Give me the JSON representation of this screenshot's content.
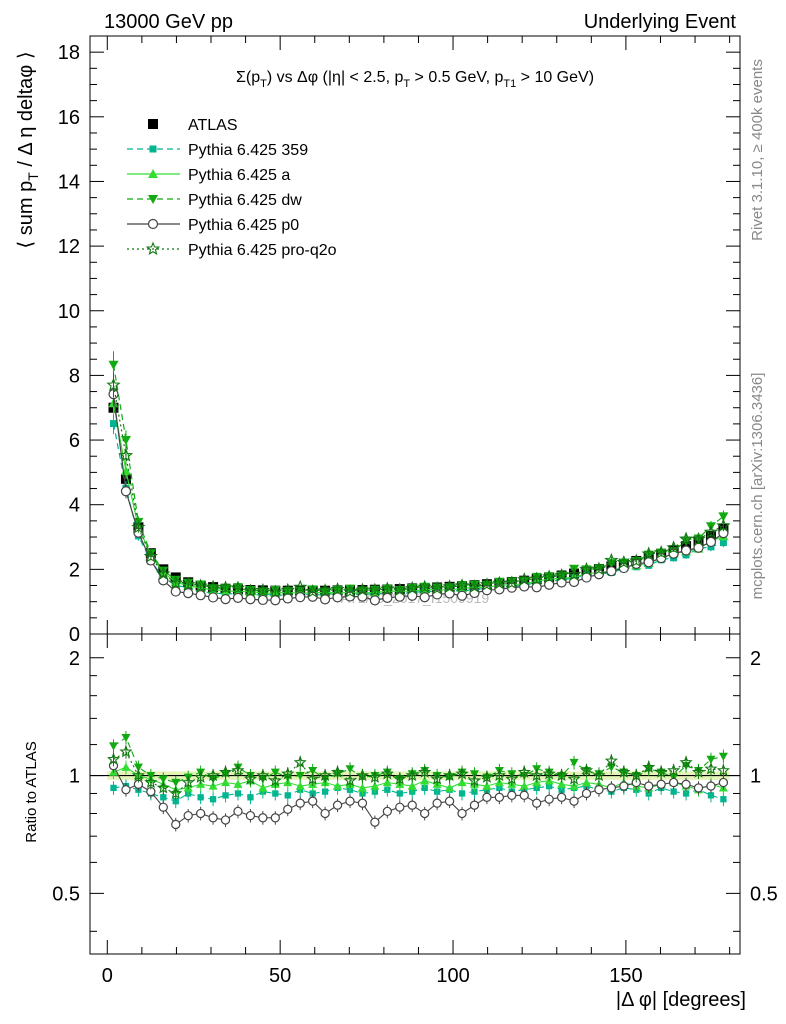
{
  "header": {
    "left": "13000 GeV pp",
    "right": "Underlying Event"
  },
  "side": {
    "rivet": "Rivet 3.1.10, ≥ 400k events",
    "mcplots": "mcplots.cern.ch [arXiv:1306.3436]"
  },
  "chart_data": {
    "type": "scatter",
    "title": "Σ(pT) vs Δφ (|η| < 2.5, pT > 0.5 GeV, pT1 > 10 GeV)",
    "xlabel": "|Δ φ| [degrees]",
    "ylabel": "⟨ sum pT / Δ η deltaφ ⟩",
    "ratio_ylabel": "Ratio to ATLAS",
    "watermark": "ATLAS_2017_I1509919",
    "xlim": [
      -5,
      183
    ],
    "ylim": [
      0,
      18.5
    ],
    "ratio_ylim": [
      0.35,
      2.3
    ],
    "ratio_scale": "log",
    "x_ticks": [
      0,
      50,
      100,
      150
    ],
    "y_ticks": [
      0,
      2,
      4,
      6,
      8,
      10,
      12,
      14,
      16,
      18
    ],
    "ratio_ticks": [
      0.5,
      1,
      2
    ],
    "legend_position": "top-left",
    "series": [
      {
        "name": "ATLAS",
        "marker": "square",
        "line": "none",
        "color": "#000000",
        "x": [
          1.8,
          5.4,
          9.0,
          12.6,
          16.2,
          19.8,
          23.4,
          27.0,
          30.6,
          34.2,
          37.8,
          41.4,
          45.0,
          48.6,
          52.2,
          55.8,
          59.4,
          63.0,
          66.6,
          70.2,
          73.8,
          77.4,
          81.0,
          84.6,
          88.2,
          91.8,
          95.4,
          99.0,
          102.6,
          106.2,
          109.8,
          113.4,
          117.0,
          120.6,
          124.2,
          127.8,
          131.4,
          135.0,
          138.6,
          142.2,
          145.8,
          149.4,
          153.0,
          156.6,
          160.2,
          163.8,
          167.4,
          171.0,
          174.6,
          178.2
        ],
        "y": [
          7.0,
          4.8,
          3.3,
          2.5,
          2.0,
          1.75,
          1.6,
          1.5,
          1.45,
          1.4,
          1.38,
          1.36,
          1.35,
          1.34,
          1.34,
          1.34,
          1.34,
          1.34,
          1.35,
          1.35,
          1.36,
          1.37,
          1.38,
          1.39,
          1.41,
          1.42,
          1.44,
          1.46,
          1.48,
          1.51,
          1.54,
          1.57,
          1.61,
          1.65,
          1.7,
          1.75,
          1.81,
          1.87,
          1.94,
          2.01,
          2.09,
          2.17,
          2.26,
          2.36,
          2.47,
          2.59,
          2.72,
          2.87,
          3.03,
          3.25
        ],
        "ratio": [
          1,
          1,
          1,
          1,
          1,
          1,
          1,
          1,
          1,
          1,
          1,
          1,
          1,
          1,
          1,
          1,
          1,
          1,
          1,
          1,
          1,
          1,
          1,
          1,
          1,
          1,
          1,
          1,
          1,
          1,
          1,
          1,
          1,
          1,
          1,
          1,
          1,
          1,
          1,
          1,
          1,
          1,
          1,
          1,
          1,
          1,
          1,
          1,
          1,
          1
        ]
      },
      {
        "name": "Pythia 6.425 359",
        "marker": "small-square",
        "line": "dashed",
        "color": "#00b58f",
        "ratio": [
          0.93,
          0.94,
          0.92,
          0.9,
          0.88,
          0.86,
          0.9,
          0.88,
          0.87,
          0.89,
          0.9,
          0.88,
          0.91,
          0.9,
          0.89,
          0.92,
          0.9,
          0.91,
          0.93,
          0.92,
          0.9,
          0.91,
          0.92,
          0.9,
          0.91,
          0.93,
          0.91,
          0.92,
          0.9,
          0.91,
          0.92,
          0.93,
          0.91,
          0.92,
          0.93,
          0.94,
          0.92,
          0.93,
          0.94,
          0.92,
          0.91,
          0.93,
          0.92,
          0.9,
          0.93,
          0.91,
          0.9,
          0.92,
          0.89,
          0.87
        ]
      },
      {
        "name": "Pythia 6.425 a",
        "marker": "triangle-up",
        "line": "solid",
        "color": "#33dd33",
        "ratio": [
          1.02,
          1.05,
          1.0,
          0.98,
          0.95,
          0.92,
          0.93,
          0.95,
          0.94,
          0.96,
          0.95,
          0.97,
          0.93,
          0.95,
          0.96,
          0.94,
          0.95,
          0.96,
          0.94,
          0.95,
          0.93,
          0.94,
          0.96,
          0.95,
          0.94,
          0.97,
          0.95,
          0.93,
          0.96,
          0.95,
          0.94,
          0.96,
          0.95,
          0.94,
          0.96,
          0.97,
          0.95,
          0.94,
          0.96,
          0.95,
          0.93,
          0.96,
          0.94,
          0.93,
          0.95,
          0.96,
          0.94,
          0.92,
          0.95,
          0.93
        ]
      },
      {
        "name": "Pythia 6.425 dw",
        "marker": "triangle-down",
        "line": "dashed",
        "color": "#11aa11",
        "ratio": [
          1.19,
          1.25,
          1.05,
          1.0,
          0.98,
          0.96,
          0.99,
          1.02,
          0.98,
          1.01,
          1.05,
          1.0,
          0.98,
          1.02,
          0.99,
          1.0,
          1.03,
          0.98,
          1.01,
          1.04,
          0.99,
          1.0,
          1.02,
          0.98,
          1.01,
          1.03,
          1.0,
          0.99,
          1.02,
          1.01,
          0.99,
          1.03,
          1.01,
          1.0,
          1.04,
          1.02,
          1.0,
          1.08,
          1.03,
          1.01,
          1.05,
          1.02,
          1.0,
          1.04,
          1.02,
          0.99,
          1.06,
          1.03,
          1.1,
          1.12
        ]
      },
      {
        "name": "Pythia 6.425 p0",
        "marker": "open-circle",
        "line": "solid",
        "color": "#444444",
        "ratio": [
          1.06,
          0.92,
          0.95,
          0.91,
          0.83,
          0.75,
          0.79,
          0.8,
          0.78,
          0.77,
          0.81,
          0.79,
          0.78,
          0.78,
          0.82,
          0.85,
          0.86,
          0.8,
          0.84,
          0.86,
          0.85,
          0.76,
          0.81,
          0.83,
          0.84,
          0.8,
          0.85,
          0.86,
          0.8,
          0.84,
          0.88,
          0.88,
          0.89,
          0.89,
          0.85,
          0.87,
          0.88,
          0.86,
          0.9,
          0.92,
          0.93,
          0.94,
          0.96,
          0.94,
          0.95,
          0.96,
          0.95,
          0.93,
          0.94,
          0.96
        ]
      },
      {
        "name": "Pythia 6.425 pro-q2o",
        "marker": "open-star",
        "line": "dotted",
        "color": "#117711",
        "ratio": [
          1.1,
          1.15,
          1.0,
          0.96,
          0.93,
          0.9,
          0.96,
          0.99,
          1.0,
          1.02,
          1.03,
          0.98,
          1.0,
          0.97,
          1.01,
          1.08,
          0.98,
          1.0,
          1.02,
          0.97,
          1.0,
          0.99,
          1.01,
          0.98,
          1.0,
          1.02,
          0.98,
          1.0,
          1.01,
          0.97,
          0.99,
          1.0,
          0.98,
          1.02,
          1.0,
          1.01,
          1.0,
          0.98,
          1.03,
          1.0,
          1.09,
          1.02,
          1.0,
          1.05,
          1.02,
          1.03,
          1.08,
          1.02,
          1.04,
          1.03
        ]
      }
    ]
  }
}
